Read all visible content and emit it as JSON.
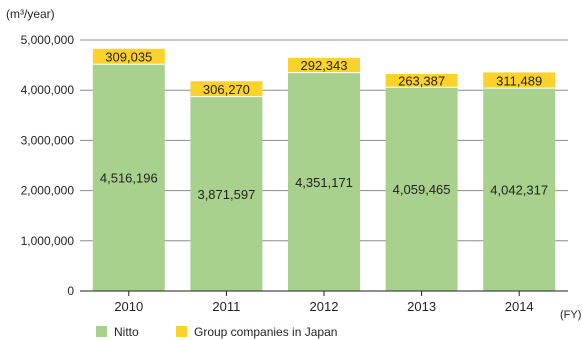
{
  "chart_data": {
    "type": "bar",
    "stacked": true,
    "unit_label": "(m³/year)",
    "x_suffix": "(FY)",
    "categories": [
      "2010",
      "2011",
      "2012",
      "2013",
      "2014"
    ],
    "series": [
      {
        "name": "Nitto",
        "color": "#a8d18d",
        "values": [
          4516196,
          3871597,
          4351171,
          4059465,
          4042317
        ],
        "labels": [
          "4,516,196",
          "3,871,597",
          "4,351,171",
          "4,059,465",
          "4,042,317"
        ]
      },
      {
        "name": "Group companies in Japan",
        "color": "#fbd22b",
        "values": [
          309035,
          306270,
          292343,
          263387,
          311489
        ],
        "labels": [
          "309,035",
          "306,270",
          "292,343",
          "263,387",
          "311,489"
        ]
      }
    ],
    "ylim": [
      0,
      5000000
    ],
    "yticks": [
      0,
      1000000,
      2000000,
      3000000,
      4000000,
      5000000
    ],
    "ytick_labels": [
      "0",
      "1,000,000",
      "2,000,000",
      "3,000,000",
      "4,000,000",
      "5,000,000"
    ],
    "grid": true,
    "legend_position": "bottom-left"
  }
}
